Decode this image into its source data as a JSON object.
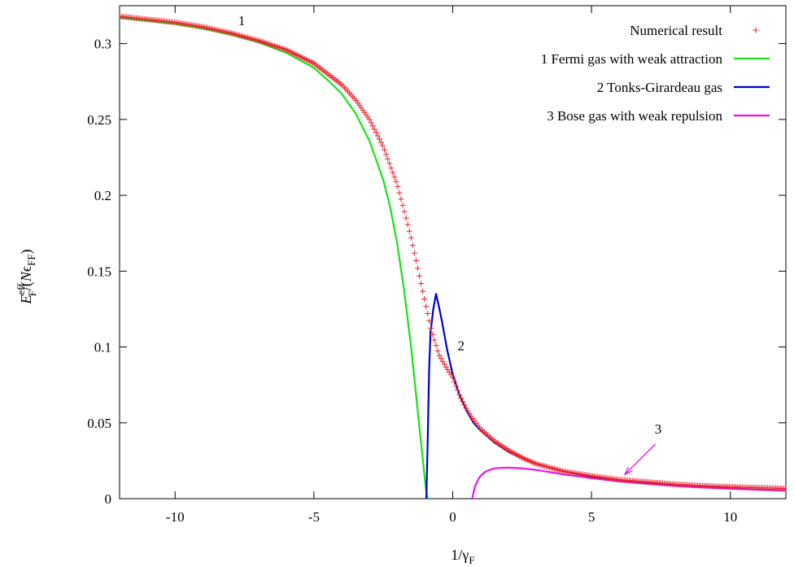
{
  "chart_data": {
    "type": "line",
    "title": "",
    "xlabel": {
      "main": "1/γ",
      "sub": "F"
    },
    "ylabel": {
      "E": "E",
      "E_sup": "eff",
      "E_sub": "F",
      "mid": "/(",
      "N": "N",
      "eps": "ϵ",
      "eps_sub": "FF",
      "close": ")"
    },
    "xlim": [
      -12,
      12
    ],
    "ylim": [
      0,
      0.325
    ],
    "x_ticks": [
      {
        "value": -10,
        "label": "-10"
      },
      {
        "value": -5,
        "label": "-5"
      },
      {
        "value": 0,
        "label": "0"
      },
      {
        "value": 5,
        "label": "5"
      },
      {
        "value": 10,
        "label": "10"
      }
    ],
    "y_ticks": [
      {
        "value": 0,
        "label": "0"
      },
      {
        "value": 0.05,
        "label": "0.05"
      },
      {
        "value": 0.1,
        "label": "0.1"
      },
      {
        "value": 0.15,
        "label": "0.15"
      },
      {
        "value": 0.2,
        "label": "0.2"
      },
      {
        "value": 0.25,
        "label": "0.25"
      },
      {
        "value": 0.3,
        "label": "0.3"
      }
    ],
    "grid": false,
    "legend_position": "top-right",
    "series": [
      {
        "name": "Numerical result",
        "style": "points",
        "marker": "+",
        "color": "#e8232b",
        "x": [
          -12,
          -11,
          -10,
          -9,
          -8,
          -7,
          -6,
          -5,
          -4,
          -3.5,
          -3,
          -2.5,
          -2,
          -1.75,
          -1.5,
          -1.25,
          -1,
          -0.75,
          -0.5,
          -0.25,
          0,
          0.25,
          0.5,
          0.75,
          1,
          1.5,
          2,
          2.5,
          3,
          4,
          5,
          6,
          7,
          8,
          9,
          10,
          11,
          12
        ],
        "y": [
          0.318,
          0.316,
          0.314,
          0.311,
          0.307,
          0.302,
          0.296,
          0.287,
          0.273,
          0.263,
          0.25,
          0.232,
          0.207,
          0.19,
          0.172,
          0.151,
          0.13,
          0.11,
          0.095,
          0.087,
          0.08,
          0.068,
          0.059,
          0.052,
          0.046,
          0.038,
          0.032,
          0.027,
          0.023,
          0.018,
          0.015,
          0.0125,
          0.011,
          0.0095,
          0.0085,
          0.0078,
          0.0072,
          0.0067
        ]
      },
      {
        "name": "1 Fermi gas with weak attraction",
        "style": "line",
        "color": "#19e219",
        "x": [
          -12,
          -11,
          -10,
          -9,
          -8,
          -7,
          -6,
          -5,
          -4.5,
          -4,
          -3.5,
          -3,
          -2.5,
          -2.25,
          -2,
          -1.75,
          -1.5,
          -1.4,
          -1.3,
          -1.2,
          -1.1,
          -1,
          -0.95,
          -0.9,
          -0.85,
          -0.8,
          -0.75
        ],
        "y": [
          0.317,
          0.315,
          0.313,
          0.31,
          0.306,
          0.301,
          0.294,
          0.284,
          0.276,
          0.267,
          0.254,
          0.236,
          0.21,
          0.192,
          0.168,
          0.137,
          0.1,
          0.083,
          0.065,
          0.047,
          0.03,
          0.012,
          0.004,
          0,
          0,
          0,
          0
        ]
      },
      {
        "name": "2 Tonks-Girardeau gas",
        "style": "line",
        "color": "#0000cc",
        "x": [
          -0.95,
          -0.9,
          -0.85,
          -0.8,
          -0.75,
          -0.7,
          -0.65,
          -0.6,
          -0.5,
          -0.4,
          -0.3,
          -0.2,
          -0.1,
          0,
          0.25,
          0.5,
          0.75,
          1,
          1.5,
          2,
          2.5,
          3,
          4,
          5,
          6,
          7,
          8,
          9,
          10,
          11,
          12
        ],
        "y": [
          0,
          0.04,
          0.085,
          0.11,
          0.117,
          0.125,
          0.13,
          0.135,
          0.127,
          0.118,
          0.108,
          0.098,
          0.09,
          0.082,
          0.068,
          0.058,
          0.05,
          0.045,
          0.037,
          0.031,
          0.027,
          0.023,
          0.018,
          0.0145,
          0.012,
          0.0102,
          0.0088,
          0.0077,
          0.0068,
          0.006,
          0.0054
        ]
      },
      {
        "name": "3 Bose gas with weak repulsion",
        "style": "line",
        "color": "#ee11ee",
        "x": [
          0.7,
          0.8,
          0.9,
          1,
          1.2,
          1.5,
          2,
          2.5,
          3,
          4,
          5,
          6,
          7,
          8,
          9,
          10,
          11,
          12
        ],
        "y": [
          0,
          0.008,
          0.012,
          0.015,
          0.018,
          0.02,
          0.0205,
          0.02,
          0.019,
          0.016,
          0.0135,
          0.0115,
          0.0098,
          0.0085,
          0.0075,
          0.0066,
          0.0059,
          0.0053
        ]
      }
    ],
    "annotations": [
      {
        "text": "1",
        "x": -7.6,
        "y": 0.312
      },
      {
        "text": "2",
        "x": 0.3,
        "y": 0.098
      },
      {
        "text": "3",
        "x": 7.4,
        "y": 0.043
      }
    ],
    "arrow": {
      "from": [
        7.3,
        0.036
      ],
      "to": [
        6.2,
        0.016
      ],
      "color": "#ee11ee"
    }
  }
}
